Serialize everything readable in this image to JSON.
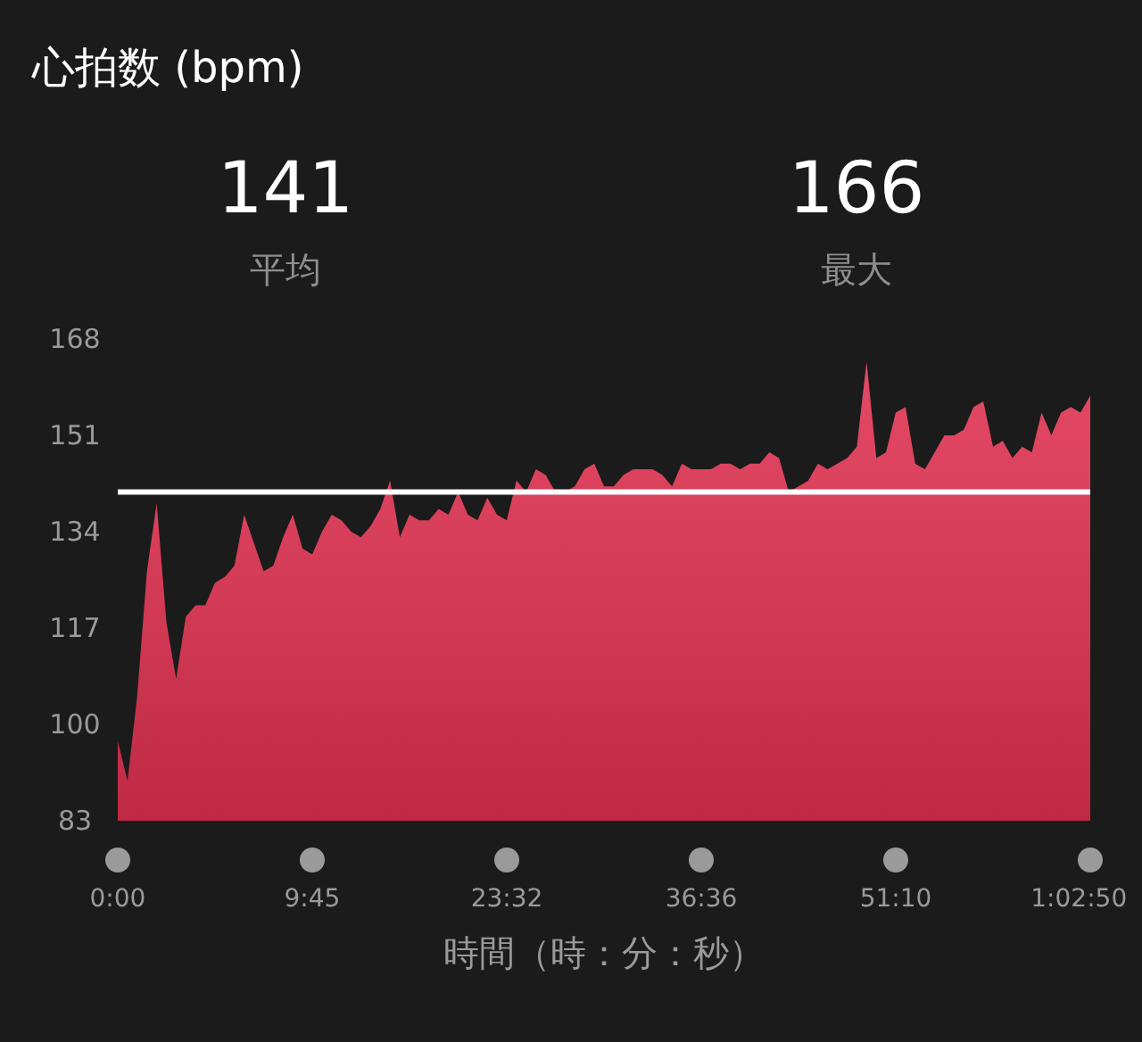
{
  "chart_data": {
    "type": "area",
    "title": "心拍数 (bpm)",
    "xlabel": "時間（時：分：秒）",
    "annotations": [
      "141",
      "平均",
      "166",
      "最大"
    ],
    "categories": [
      "0:00",
      null,
      null,
      null,
      null,
      null,
      null,
      null,
      null,
      null,
      null,
      null,
      null,
      null,
      null,
      null,
      null,
      null,
      null,
      null,
      "9:45",
      null,
      null,
      null,
      null,
      null,
      null,
      null,
      null,
      null,
      null,
      null,
      null,
      null,
      null,
      null,
      null,
      null,
      null,
      null,
      "23:32",
      null,
      null,
      null,
      null,
      null,
      null,
      null,
      null,
      null,
      null,
      null,
      null,
      null,
      null,
      null,
      null,
      null,
      null,
      null,
      "36:36",
      null,
      null,
      null,
      null,
      null,
      null,
      null,
      null,
      null,
      null,
      null,
      null,
      null,
      null,
      null,
      null,
      null,
      null,
      null,
      "51:10",
      null,
      null,
      null,
      null,
      null,
      null,
      null,
      null,
      null,
      null,
      null,
      null,
      null,
      null,
      null,
      null,
      null,
      null,
      null,
      "1:02:50"
    ],
    "ylim": [
      83,
      168
    ],
    "yticks": [
      83,
      100,
      117,
      134,
      151,
      168
    ],
    "ref_lines": [
      {
        "axis": "y",
        "value": 141,
        "color": "#ffffff"
      }
    ],
    "series": [
      {
        "color": "#e0304f",
        "values": [
          97,
          90,
          105,
          127,
          139,
          118,
          108,
          119,
          121,
          121,
          125,
          126,
          128,
          137,
          132,
          127,
          128,
          133,
          137,
          131,
          130,
          134,
          137,
          136,
          134,
          133,
          135,
          138,
          143,
          133,
          137,
          136,
          136,
          138,
          137,
          141,
          137,
          136,
          140,
          137,
          136,
          143,
          141,
          145,
          144,
          141,
          141,
          142,
          145,
          146,
          142,
          142,
          144,
          145,
          145,
          145,
          144,
          142,
          146,
          145,
          145,
          145,
          146,
          146,
          145,
          146,
          146,
          148,
          147,
          141,
          142,
          143,
          146,
          145,
          146,
          147,
          149,
          164,
          147,
          148,
          155,
          156,
          146,
          145,
          148,
          151,
          151,
          152,
          156,
          157,
          149,
          150,
          147,
          149,
          148,
          155,
          151,
          155,
          156,
          155,
          158
        ]
      }
    ]
  }
}
